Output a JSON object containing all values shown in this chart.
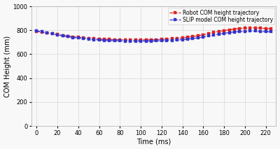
{
  "title": "",
  "xlabel": "Time (ms)",
  "ylabel": "COM Height (mm)",
  "xlim": [
    -5,
    230
  ],
  "ylim": [
    0,
    1000
  ],
  "xticks": [
    0,
    20,
    40,
    60,
    80,
    100,
    120,
    140,
    160,
    180,
    200,
    220
  ],
  "yticks": [
    0,
    200,
    400,
    600,
    800,
    1000
  ],
  "robot_color": "#dd2222",
  "slip_color": "#3333cc",
  "robot_label": "Robot COM height trajectory",
  "slip_label": "SLIP model COM height trajectory",
  "background_color": "#f8f8f8",
  "grid_color": "#d0d0d0",
  "figsize": [
    4.0,
    2.13
  ],
  "dpi": 100,
  "robot_x": [
    0,
    5,
    10,
    15,
    20,
    25,
    30,
    35,
    40,
    45,
    50,
    55,
    60,
    65,
    70,
    75,
    80,
    85,
    90,
    95,
    100,
    105,
    110,
    115,
    120,
    125,
    130,
    135,
    140,
    145,
    150,
    155,
    160,
    165,
    170,
    175,
    180,
    185,
    190,
    195,
    200,
    205,
    210,
    215,
    220,
    225
  ],
  "robot_y": [
    790,
    785,
    778,
    771,
    764,
    757,
    751,
    746,
    741,
    737,
    733,
    730,
    727,
    725,
    723,
    722,
    721,
    720,
    720,
    720,
    720,
    720,
    721,
    722,
    724,
    726,
    729,
    732,
    736,
    741,
    747,
    755,
    763,
    772,
    782,
    790,
    797,
    804,
    810,
    815,
    818,
    820,
    820,
    818,
    815,
    812
  ],
  "slip_x": [
    0,
    5,
    10,
    15,
    20,
    25,
    30,
    35,
    40,
    45,
    50,
    55,
    60,
    65,
    70,
    75,
    80,
    85,
    90,
    95,
    100,
    105,
    110,
    115,
    120,
    125,
    130,
    135,
    140,
    145,
    150,
    155,
    160,
    165,
    170,
    175,
    180,
    185,
    190,
    195,
    200,
    205,
    210,
    215,
    220,
    225
  ],
  "slip_y": [
    795,
    787,
    779,
    771,
    762,
    754,
    747,
    740,
    735,
    730,
    726,
    722,
    719,
    716,
    714,
    712,
    711,
    710,
    710,
    710,
    710,
    710,
    710,
    711,
    712,
    714,
    716,
    719,
    722,
    726,
    731,
    737,
    744,
    752,
    760,
    768,
    775,
    781,
    786,
    790,
    792,
    793,
    793,
    791,
    789,
    787
  ]
}
